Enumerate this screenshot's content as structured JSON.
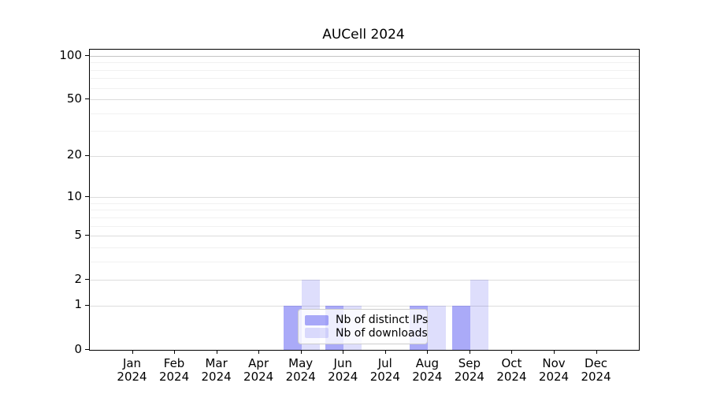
{
  "chart_data": {
    "type": "bar",
    "title": "AUCell 2024",
    "xlabel": "",
    "ylabel": "",
    "yscale": "log1p",
    "grid": true,
    "legend_position": "lower center inside plot",
    "categories": [
      "Jan",
      "Feb",
      "Mar",
      "Apr",
      "May",
      "Jun",
      "Jul",
      "Aug",
      "Sep",
      "Oct",
      "Nov",
      "Dec"
    ],
    "x_year_label": "2024",
    "yticks": [
      0,
      1,
      2,
      5,
      10,
      20,
      50,
      100
    ],
    "yticks_minor": [
      3,
      4,
      6,
      7,
      8,
      9,
      30,
      40,
      60,
      70,
      80,
      90
    ],
    "ylim": [
      0,
      110
    ],
    "series": [
      {
        "name": "Nb of distinct IPs",
        "color": "#abaaf5",
        "fill_rgba": "rgba(70,70,240,0.46)",
        "values": [
          0,
          0,
          0,
          0,
          1,
          1,
          0,
          1,
          1,
          0,
          0,
          0
        ]
      },
      {
        "name": "Nb of downloads",
        "color": "#dcddfb",
        "fill_rgba": "rgba(70,70,240,0.18)",
        "values": [
          0,
          0,
          0,
          0,
          2,
          1,
          0,
          1,
          2,
          0,
          0,
          0
        ]
      }
    ]
  }
}
